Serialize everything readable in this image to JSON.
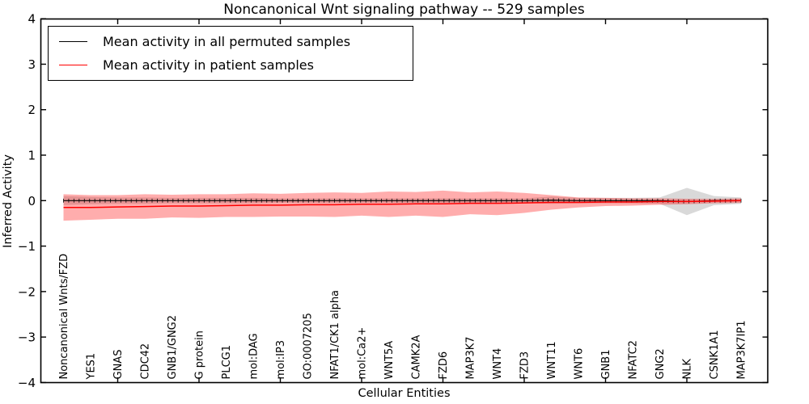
{
  "figure": {
    "title": "Noncanonical Wnt signaling pathway -- 529 samples",
    "xlabel": "Cellular Entities",
    "ylabel": "Inferred Activity"
  },
  "legend": {
    "items": [
      {
        "label": "Mean activity in all permuted samples",
        "color": "#000000"
      },
      {
        "label": "Mean activity in patient samples",
        "color": "#ff0000"
      }
    ]
  },
  "chart_data": {
    "type": "line",
    "title": "Noncanonical Wnt signaling pathway -- 529 samples",
    "xlabel": "Cellular Entities",
    "ylabel": "Inferred Activity",
    "ylim": [
      -4,
      4
    ],
    "yticks": [
      4,
      3,
      2,
      1,
      0,
      -1,
      -2,
      -3,
      -4
    ],
    "grid": false,
    "legend_position": "upper left",
    "categories": [
      "Noncanonical Wnts/FZD",
      "YES1",
      "GNAS",
      "CDC42",
      "GNB1/GNG2",
      "G protein",
      "PLCG1",
      "mol:DAG",
      "mol:IP3",
      "GO:0007205",
      "NFAT1/CK1 alpha",
      "mol:Ca2+",
      "WNT5A",
      "CAMK2A",
      "FZD6",
      "MAP3K7",
      "WNT4",
      "FZD3",
      "WNT11",
      "WNT6",
      "GNB1",
      "NFATC2",
      "GNG2",
      "NLK",
      "CSNK1A1",
      "MAP3K7IP1"
    ],
    "series": [
      {
        "name": "Mean activity in all permuted samples",
        "color": "#000000",
        "band_color": "#000000",
        "mean": [
          0,
          0,
          0,
          0,
          0,
          0,
          0,
          0,
          0,
          0,
          0,
          0,
          0,
          0,
          0,
          0,
          0,
          0,
          0.01,
          0,
          0,
          0,
          0,
          -0.02,
          0,
          0
        ],
        "std": [
          0.1,
          0.08,
          0.07,
          0.07,
          0.06,
          0.06,
          0.06,
          0.06,
          0.05,
          0.05,
          0.05,
          0.05,
          0.05,
          0.05,
          0.05,
          0.05,
          0.05,
          0.05,
          0.08,
          0.06,
          0.06,
          0.06,
          0.07,
          0.3,
          0.1,
          0.07
        ]
      },
      {
        "name": "Mean activity in patient samples",
        "color": "#ff0000",
        "band_color": "#ff0000",
        "mean": [
          -0.15,
          -0.15,
          -0.14,
          -0.13,
          -0.12,
          -0.12,
          -0.11,
          -0.1,
          -0.1,
          -0.09,
          -0.09,
          -0.08,
          -0.08,
          -0.07,
          -0.07,
          -0.06,
          -0.06,
          -0.05,
          -0.04,
          -0.04,
          -0.03,
          -0.03,
          -0.02,
          -0.02,
          -0.01,
          0.0
        ],
        "std": [
          0.29,
          0.27,
          0.26,
          0.27,
          0.25,
          0.26,
          0.25,
          0.26,
          0.25,
          0.26,
          0.27,
          0.25,
          0.28,
          0.26,
          0.29,
          0.24,
          0.26,
          0.22,
          0.16,
          0.11,
          0.09,
          0.08,
          0.07,
          0.06,
          0.05,
          0.05
        ]
      }
    ]
  }
}
